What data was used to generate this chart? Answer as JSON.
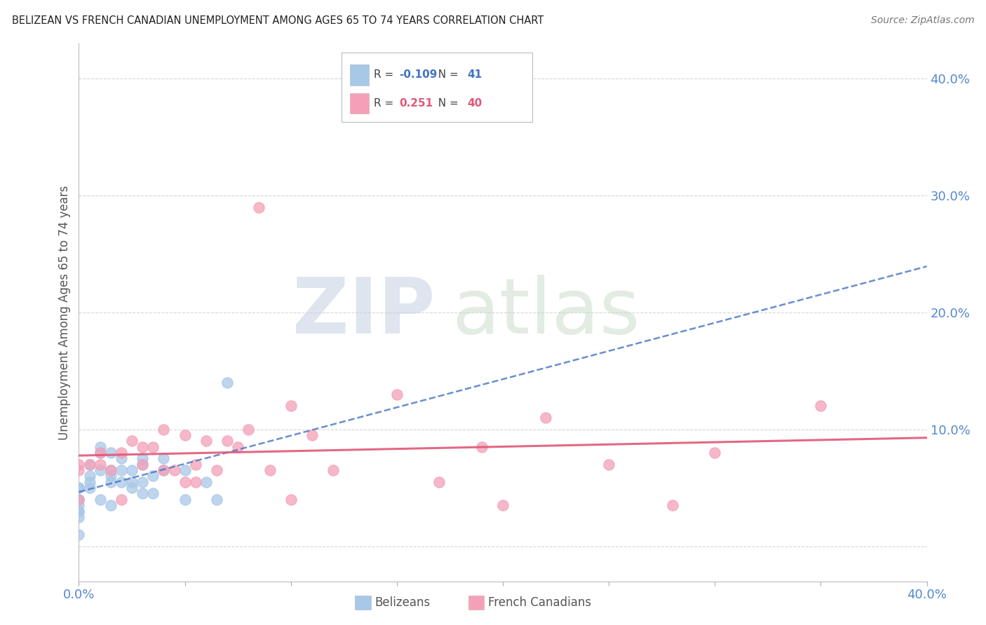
{
  "title": "BELIZEAN VS FRENCH CANADIAN UNEMPLOYMENT AMONG AGES 65 TO 74 YEARS CORRELATION CHART",
  "source": "Source: ZipAtlas.com",
  "ylabel": "Unemployment Among Ages 65 to 74 years",
  "xlim": [
    0.0,
    0.4
  ],
  "ylim": [
    -0.03,
    0.43
  ],
  "xticks": [
    0.0,
    0.05,
    0.1,
    0.15,
    0.2,
    0.25,
    0.3,
    0.35,
    0.4
  ],
  "yticks": [
    0.0,
    0.1,
    0.2,
    0.3,
    0.4
  ],
  "belizean_color": "#a8c8e8",
  "french_color": "#f4a0b8",
  "belizean_line_color": "#4472c4",
  "french_line_color": "#e05878",
  "belizean_R": -0.109,
  "belizean_N": 41,
  "french_R": 0.251,
  "french_N": 40,
  "background_color": "#ffffff",
  "grid_color": "#cccccc",
  "axis_label_color": "#5588cc",
  "belizean_scatter_x": [
    0.0,
    0.0,
    0.0,
    0.0,
    0.0,
    0.0,
    0.0,
    0.0,
    0.0,
    0.005,
    0.005,
    0.005,
    0.005,
    0.01,
    0.01,
    0.01,
    0.01,
    0.015,
    0.015,
    0.015,
    0.015,
    0.015,
    0.02,
    0.02,
    0.02,
    0.025,
    0.025,
    0.025,
    0.03,
    0.03,
    0.03,
    0.03,
    0.035,
    0.035,
    0.04,
    0.04,
    0.05,
    0.05,
    0.06,
    0.065,
    0.07
  ],
  "belizean_scatter_y": [
    0.05,
    0.05,
    0.04,
    0.04,
    0.035,
    0.03,
    0.03,
    0.025,
    0.01,
    0.07,
    0.06,
    0.055,
    0.05,
    0.085,
    0.08,
    0.065,
    0.04,
    0.08,
    0.065,
    0.06,
    0.055,
    0.035,
    0.075,
    0.065,
    0.055,
    0.065,
    0.055,
    0.05,
    0.075,
    0.07,
    0.055,
    0.045,
    0.06,
    0.045,
    0.075,
    0.065,
    0.065,
    0.04,
    0.055,
    0.04,
    0.14
  ],
  "french_scatter_x": [
    0.0,
    0.0,
    0.0,
    0.005,
    0.01,
    0.01,
    0.015,
    0.02,
    0.02,
    0.025,
    0.03,
    0.03,
    0.035,
    0.04,
    0.04,
    0.045,
    0.05,
    0.05,
    0.055,
    0.055,
    0.06,
    0.065,
    0.07,
    0.075,
    0.08,
    0.085,
    0.09,
    0.1,
    0.1,
    0.11,
    0.12,
    0.15,
    0.17,
    0.19,
    0.2,
    0.22,
    0.25,
    0.28,
    0.3,
    0.35
  ],
  "french_scatter_y": [
    0.07,
    0.065,
    0.04,
    0.07,
    0.08,
    0.07,
    0.065,
    0.08,
    0.04,
    0.09,
    0.085,
    0.07,
    0.085,
    0.1,
    0.065,
    0.065,
    0.095,
    0.055,
    0.07,
    0.055,
    0.09,
    0.065,
    0.09,
    0.085,
    0.1,
    0.29,
    0.065,
    0.12,
    0.04,
    0.095,
    0.065,
    0.13,
    0.055,
    0.085,
    0.035,
    0.11,
    0.07,
    0.035,
    0.08,
    0.12
  ]
}
